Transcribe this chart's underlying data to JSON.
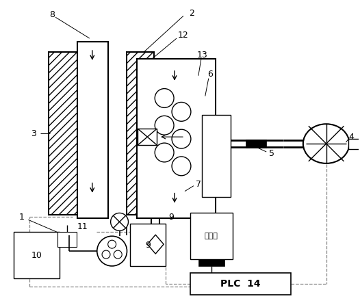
{
  "bg_color": "#ffffff",
  "line_color": "#000000",
  "dash_color": "#888888",
  "plc_text": "PLC  14",
  "distilled_text": "蒸馏水"
}
